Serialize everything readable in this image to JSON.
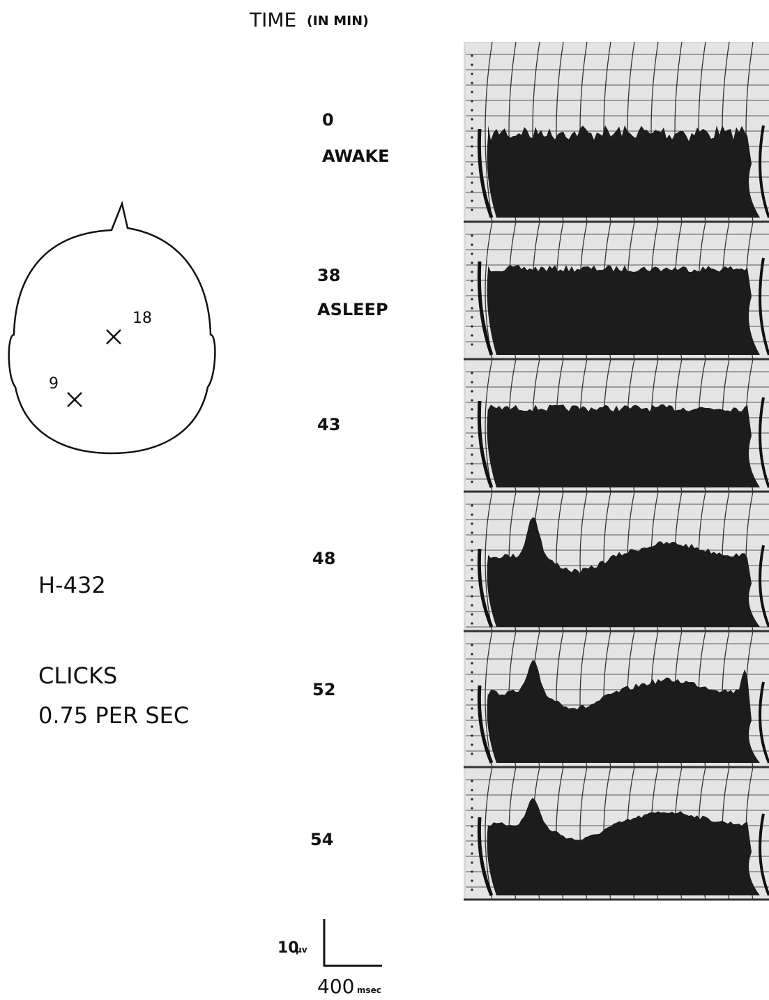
{
  "header": {
    "title": "TIME",
    "unit": "(IN MIN)"
  },
  "head_diagram": {
    "electrodes": [
      {
        "label": "18"
      },
      {
        "label": "9"
      }
    ]
  },
  "subject": "H-432",
  "stimulus": {
    "label": "CLICKS",
    "rate": "0.75 PER SEC"
  },
  "traces": [
    {
      "time": "0",
      "state": "AWAKE"
    },
    {
      "time": "38",
      "state": "ASLEEP"
    },
    {
      "time": "43"
    },
    {
      "time": "48"
    },
    {
      "time": "52"
    },
    {
      "time": "54"
    }
  ],
  "scale_bar": {
    "amplitude": "10",
    "amplitude_unit": "μv",
    "duration": "400",
    "duration_unit": "msec"
  }
}
